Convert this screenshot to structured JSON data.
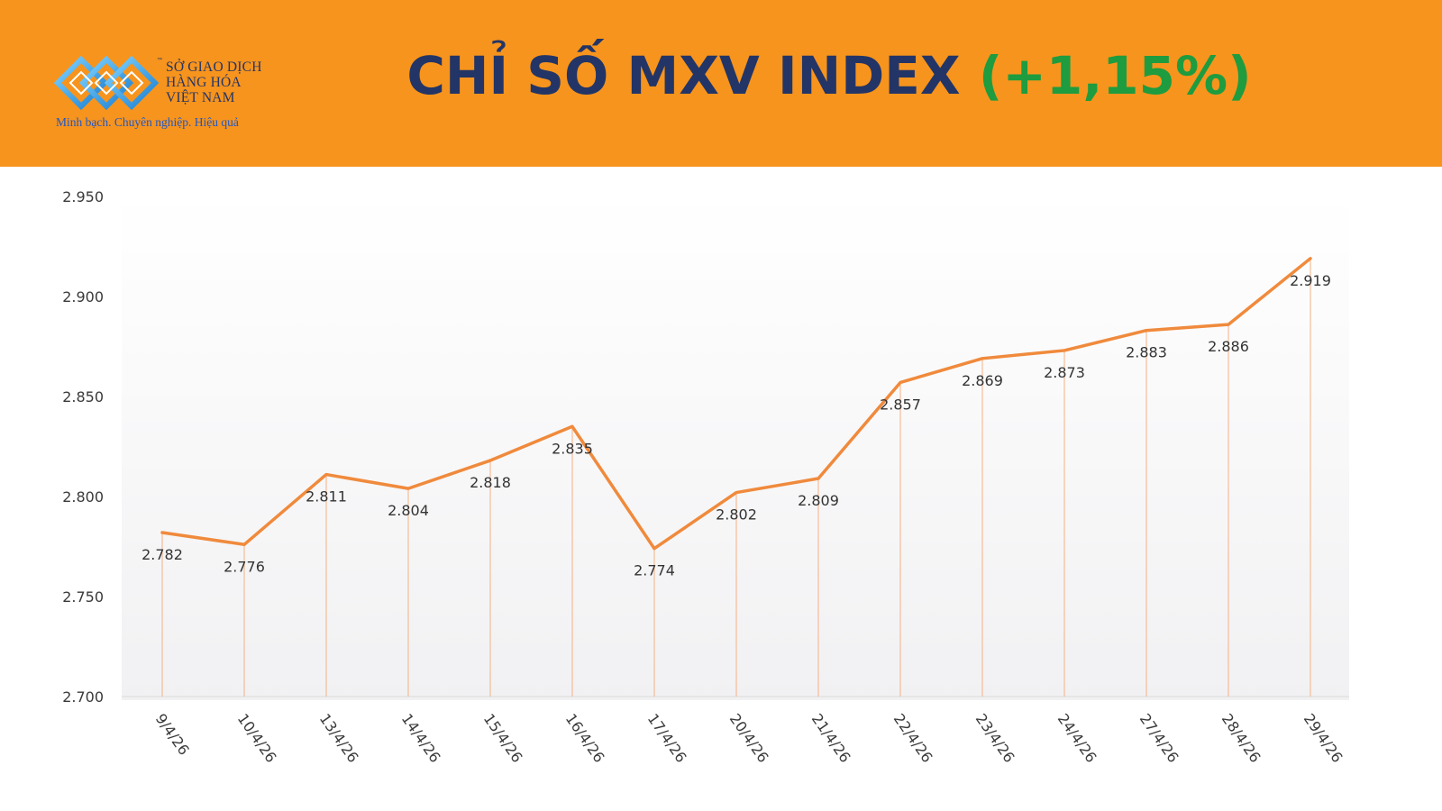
{
  "header": {
    "logo": {
      "lines": [
        "SỞ GIAO DỊCH",
        "HÀNG HÓA",
        "VIỆT NAM"
      ],
      "tm": "™",
      "tagline": "Minh bạch. Chuyên nghiệp. Hiệu quả"
    },
    "title_main": "CHỈ SỐ MXV INDEX ",
    "title_change": "(+1,15%)"
  },
  "colors": {
    "header_bg": "#f7941d",
    "title": "#233566",
    "change": "#1e9c3f",
    "line": "#f08a3c",
    "droplines": "#f4b183"
  },
  "chart_data": {
    "type": "line",
    "categories": [
      "9/4/26",
      "10/4/26",
      "13/4/26",
      "14/4/26",
      "15/4/26",
      "16/4/26",
      "17/4/26",
      "20/4/26",
      "21/4/26",
      "22/4/26",
      "23/4/26",
      "24/4/26",
      "27/4/26",
      "28/4/26",
      "29/4/26"
    ],
    "values": [
      2782,
      2776,
      2811,
      2804,
      2818,
      2835,
      2774,
      2802,
      2809,
      2857,
      2869,
      2873,
      2883,
      2886,
      2919
    ],
    "data_labels": [
      "2.782",
      "2.776",
      "2.811",
      "2.804",
      "2.818",
      "2.835",
      "2.774",
      "2.802",
      "2.809",
      "2.857",
      "2.869",
      "2.873",
      "2.883",
      "2.886",
      "2.919"
    ],
    "yticks": [
      2700,
      2750,
      2800,
      2850,
      2900,
      2950
    ],
    "ytick_labels": [
      "2.700",
      "2.750",
      "2.800",
      "2.850",
      "2.900",
      "2.950"
    ],
    "ylim": [
      2700,
      2950
    ],
    "grid": false,
    "drop_lines": true,
    "legend": "none",
    "title": "",
    "xlabel": "",
    "ylabel": ""
  }
}
